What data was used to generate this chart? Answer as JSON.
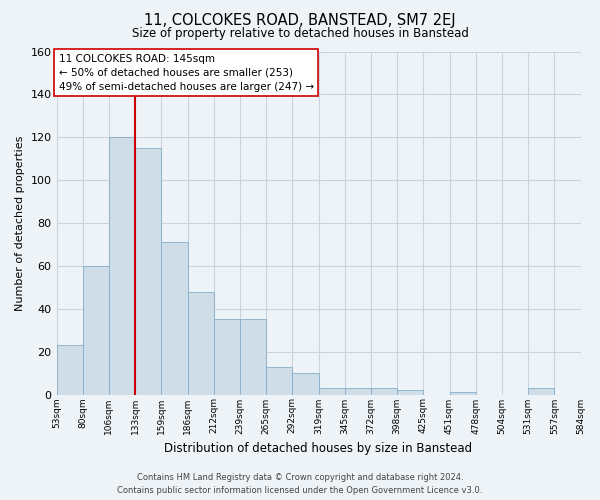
{
  "title": "11, COLCOKES ROAD, BANSTEAD, SM7 2EJ",
  "subtitle": "Size of property relative to detached houses in Banstead",
  "xlabel": "Distribution of detached houses by size in Banstead",
  "ylabel": "Number of detached properties",
  "bar_values": [
    23,
    60,
    120,
    115,
    71,
    48,
    35,
    35,
    13,
    10,
    3,
    3,
    3,
    2,
    0,
    1,
    0,
    0,
    3,
    0
  ],
  "bin_labels": [
    "53sqm",
    "80sqm",
    "106sqm",
    "133sqm",
    "159sqm",
    "186sqm",
    "212sqm",
    "239sqm",
    "265sqm",
    "292sqm",
    "319sqm",
    "345sqm",
    "372sqm",
    "398sqm",
    "425sqm",
    "451sqm",
    "478sqm",
    "504sqm",
    "531sqm",
    "557sqm",
    "584sqm"
  ],
  "bar_color": "#cfdde8",
  "bar_edge_color": "#85aec8",
  "marker_bin": 3,
  "marker_color": "#cc0000",
  "ylim": [
    0,
    160
  ],
  "yticks": [
    0,
    20,
    40,
    60,
    80,
    100,
    120,
    140,
    160
  ],
  "annotation_title": "11 COLCOKES ROAD: 145sqm",
  "annotation_line1": "← 50% of detached houses are smaller (253)",
  "annotation_line2": "49% of semi-detached houses are larger (247) →",
  "annotation_box_color": "#ffffff",
  "annotation_box_edge": "#cc0000",
  "footer_line1": "Contains HM Land Registry data © Crown copyright and database right 2024.",
  "footer_line2": "Contains public sector information licensed under the Open Government Licence v3.0.",
  "grid_color": "#c8d4e0",
  "background_color": "#eef3f8"
}
